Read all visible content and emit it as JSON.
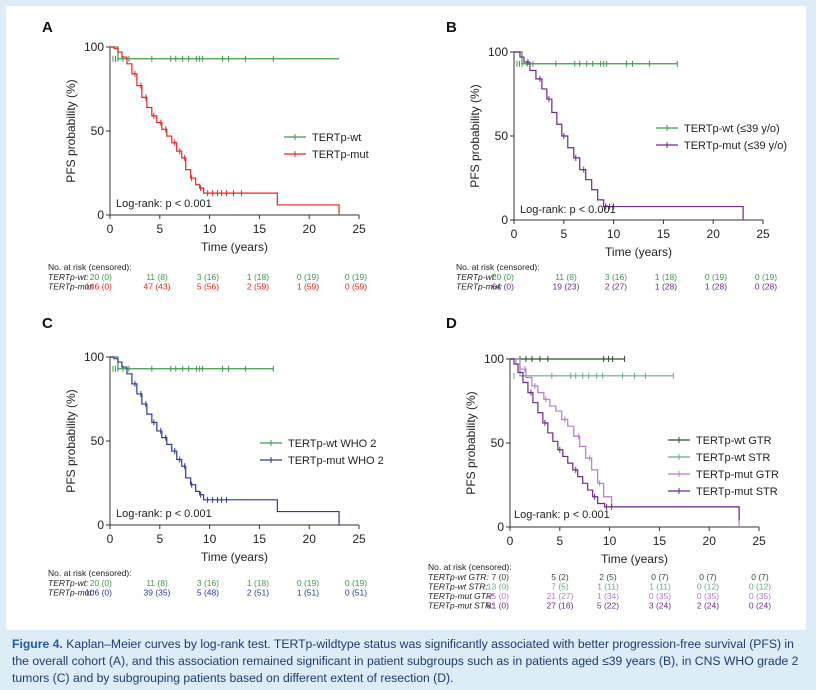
{
  "caption": {
    "label": "Figure 4.",
    "text": "Kaplan–Meier curves by log-rank test. TERTp-wildtype status was significantly associated with better progression-free survival (PFS) in the overall cohort (A), and this association remained significant in patient subgroups such as in patients aged ≤39 years (B), in CNS WHO grade 2 tumors (C) and by subgrouping patients based on different extent of resection (D)."
  },
  "chart_data": [
    {
      "type": "line",
      "panel": "A",
      "xlabel": "Time (years)",
      "ylabel": "PFS probability (%)",
      "xlim": [
        0,
        25
      ],
      "ylim": [
        0,
        100
      ],
      "xticks": [
        "0",
        "5",
        "10",
        "15",
        "20",
        "25"
      ],
      "yticks": [
        "0",
        "50",
        "100"
      ],
      "annotation": "Log-rank: p < 0.001",
      "series": [
        {
          "name": "TERTp-wt",
          "color": "#3f9a4f",
          "x": [
            0,
            0.4,
            0.8,
            23.0
          ],
          "y": [
            100,
            100,
            93,
            93
          ],
          "censor_x": [
            0.3,
            0.55,
            0.8,
            1.3,
            1.9,
            4.2,
            6.1,
            6.6,
            7.3,
            7.9,
            8.7,
            9.0,
            9.3,
            11.3,
            11.9,
            13.6,
            16.4
          ],
          "censor_y": 93
        },
        {
          "name": "TERTp-mut",
          "color": "#e8251f",
          "x": [
            0,
            0.4,
            0.8,
            1.2,
            1.7,
            2.2,
            2.7,
            3.2,
            3.7,
            4.2,
            4.7,
            5.2,
            5.7,
            6.2,
            6.7,
            7.2,
            7.6,
            8.1,
            8.6,
            9.0,
            9.4,
            10.2,
            16.8,
            23.0
          ],
          "y": [
            100,
            99,
            97,
            94,
            90,
            84,
            77,
            70,
            64,
            59,
            55,
            51,
            47,
            43,
            38,
            34,
            27,
            22,
            18,
            16,
            13,
            13,
            6,
            0
          ],
          "censor_x": [
            2.5,
            3.1,
            3.6,
            4.4,
            5.1,
            5.6,
            6.5,
            7.0,
            7.5,
            8.2,
            9.1,
            9.8,
            10.3,
            10.8,
            11.2,
            11.7,
            12.4,
            13.2
          ],
          "censor_y_mode": "curve"
        }
      ],
      "risk_table": {
        "title": "No. at risk (censored):",
        "rows": [
          {
            "label": "TERTp-wt:",
            "color": "#3f9a4f",
            "values": [
              "20 (0)",
              "11 (8)",
              "3 (16)",
              "1 (18)",
              "0 (19)",
              "0 (19)"
            ]
          },
          {
            "label": "TERTp-mut:",
            "color": "#e8251f",
            "values": [
              "146 (0)",
              "47 (43)",
              "5 (56)",
              "2 (59)",
              "1 (59)",
              "0 (59)"
            ]
          }
        ]
      }
    },
    {
      "type": "line",
      "panel": "B",
      "xlabel": "Time (years)",
      "ylabel": "PFS probability (%)",
      "xlim": [
        0,
        25
      ],
      "ylim": [
        0,
        100
      ],
      "xticks": [
        "0",
        "5",
        "10",
        "15",
        "20",
        "25"
      ],
      "yticks": [
        "0",
        "50",
        "100"
      ],
      "annotation": "Log-rank: p < 0.001",
      "series": [
        {
          "name": "TERTp-wt (≤39 y/o)",
          "color": "#3f9a4f",
          "x": [
            0,
            0.4,
            0.8,
            16.4
          ],
          "y": [
            100,
            100,
            93,
            93
          ],
          "censor_x": [
            0.3,
            0.55,
            0.8,
            1.3,
            1.9,
            4.2,
            6.1,
            6.6,
            7.3,
            7.9,
            8.7,
            9.0,
            9.3,
            11.3,
            11.9,
            13.6,
            16.4
          ],
          "censor_y": 93
        },
        {
          "name": "TERTp-mut (≤39 y/o)",
          "color": "#6a2b8a",
          "x": [
            0,
            0.6,
            1.0,
            1.6,
            2.2,
            2.8,
            3.3,
            3.8,
            4.3,
            4.8,
            5.4,
            6.0,
            6.6,
            7.2,
            7.8,
            8.4,
            9.0,
            9.8,
            23.0
          ],
          "y": [
            100,
            97,
            94,
            89,
            84,
            78,
            72,
            64,
            57,
            50,
            43,
            37,
            30,
            24,
            18,
            12,
            8,
            8,
            0
          ],
          "censor_x": [
            1.4,
            2.6,
            3.5,
            5.0,
            6.2,
            7.0,
            9.2,
            9.6,
            10.0
          ],
          "censor_y_mode": "curve"
        }
      ],
      "risk_table": {
        "title": "No. at risk (censored):",
        "rows": [
          {
            "label": "TERTp-wt:",
            "color": "#3f9a4f",
            "values": [
              "20 (0)",
              "11 (8)",
              "3 (16)",
              "1 (18)",
              "0 (19)",
              "0 (19)"
            ]
          },
          {
            "label": "TERTp-mut:",
            "color": "#6a2b8a",
            "values": [
              "64 (0)",
              "19 (23)",
              "2 (27)",
              "1 (28)",
              "1 (28)",
              "0 (28)"
            ]
          }
        ]
      }
    },
    {
      "type": "line",
      "panel": "C",
      "xlabel": "Time (years)",
      "ylabel": "PFS probability (%)",
      "xlim": [
        0,
        25
      ],
      "ylim": [
        0,
        100
      ],
      "xticks": [
        "0",
        "5",
        "10",
        "15",
        "20",
        "25"
      ],
      "yticks": [
        "0",
        "50",
        "100"
      ],
      "annotation": "Log-rank: p < 0.001",
      "series": [
        {
          "name": "TERTp-wt WHO 2",
          "color": "#3f9a4f",
          "x": [
            0,
            0.4,
            0.8,
            16.4
          ],
          "y": [
            100,
            100,
            93,
            93
          ],
          "censor_x": [
            0.3,
            0.55,
            0.8,
            1.3,
            1.9,
            4.2,
            6.1,
            6.6,
            7.3,
            7.9,
            8.7,
            9.0,
            9.3,
            11.3,
            11.9,
            13.6,
            16.4
          ],
          "censor_y": 93
        },
        {
          "name": "TERTp-mut WHO 2",
          "color": "#2e3a8f",
          "x": [
            0,
            0.4,
            0.8,
            1.2,
            1.7,
            2.2,
            2.7,
            3.2,
            3.7,
            4.2,
            4.7,
            5.2,
            5.7,
            6.2,
            6.7,
            7.2,
            7.6,
            8.1,
            8.6,
            9.0,
            9.4,
            10.2,
            16.8,
            23.0
          ],
          "y": [
            100,
            99,
            97,
            94,
            90,
            84,
            78,
            72,
            66,
            61,
            56,
            52,
            48,
            44,
            39,
            35,
            28,
            24,
            20,
            18,
            15,
            15,
            8,
            0
          ],
          "censor_x": [
            2.5,
            3.1,
            3.6,
            4.4,
            5.1,
            5.6,
            6.5,
            7.0,
            7.5,
            8.2,
            9.1,
            9.8,
            10.3,
            10.8,
            11.2,
            11.7
          ],
          "censor_y_mode": "curve"
        }
      ],
      "risk_table": {
        "title": "No. at risk (censored):",
        "rows": [
          {
            "label": "TERTp-wt:",
            "color": "#3f9a4f",
            "values": [
              "20 (0)",
              "11 (8)",
              "3 (16)",
              "1 (18)",
              "0 (19)",
              "0 (19)"
            ]
          },
          {
            "label": "TERTp-mut:",
            "color": "#2e3a8f",
            "values": [
              "106 (0)",
              "39 (35)",
              "5 (48)",
              "2 (51)",
              "1 (51)",
              "0 (51)"
            ]
          }
        ]
      }
    },
    {
      "type": "line",
      "panel": "D",
      "xlabel": "Time (years)",
      "ylabel": "PFS probability (%)",
      "xlim": [
        0,
        25
      ],
      "ylim": [
        0,
        100
      ],
      "xticks": [
        "0",
        "5",
        "10",
        "15",
        "20",
        "25"
      ],
      "yticks": [
        "0",
        "50",
        "100"
      ],
      "annotation": "Log-rank: p < 0.001",
      "series": [
        {
          "name": "TERTp-wt GTR",
          "color": "#2f4f2f",
          "x": [
            0,
            11.5
          ],
          "y": [
            100,
            100
          ],
          "censor_x": [
            1.0,
            1.6,
            2.2,
            3.0,
            3.8,
            9.4,
            9.9,
            10.3,
            11.5
          ],
          "censor_y": 100
        },
        {
          "name": "TERTp-wt STR",
          "color": "#66aa88",
          "x": [
            0,
            0.6,
            1.0,
            16.4
          ],
          "y": [
            100,
            100,
            90,
            90
          ],
          "censor_x": [
            0.4,
            1.3,
            4.2,
            6.1,
            6.6,
            7.3,
            7.9,
            8.7,
            9.3,
            11.3,
            12.5,
            13.6,
            16.4
          ],
          "censor_y": 90
        },
        {
          "name": "TERTp-mut GTR",
          "color": "#b57bd0",
          "x": [
            0,
            0.6,
            1.0,
            1.6,
            2.2,
            2.8,
            3.4,
            4.0,
            4.6,
            5.2,
            5.8,
            6.4,
            7.0,
            7.6,
            8.2,
            8.8,
            9.4,
            10.2,
            23.0
          ],
          "y": [
            100,
            97,
            94,
            89,
            84,
            80,
            76,
            72,
            69,
            64,
            60,
            54,
            48,
            41,
            34,
            26,
            18,
            12,
            0
          ],
          "censor_x": [
            1.5,
            2.5,
            3.6,
            5.5,
            6.9,
            8.0,
            9.0
          ],
          "censor_y_mode": "curve"
        },
        {
          "name": "TERTp-mut STR",
          "color": "#6a2b8a",
          "x": [
            0,
            0.4,
            0.8,
            1.3,
            1.8,
            2.3,
            2.8,
            3.3,
            3.8,
            4.3,
            4.8,
            5.3,
            5.8,
            6.3,
            6.8,
            7.3,
            7.8,
            8.3,
            8.8,
            9.5,
            23.0
          ],
          "y": [
            100,
            97,
            92,
            86,
            80,
            74,
            68,
            62,
            56,
            51,
            46,
            42,
            38,
            34,
            30,
            26,
            22,
            18,
            14,
            12,
            4
          ],
          "censor_x": [
            2.1,
            3.5,
            5.0,
            6.6,
            8.5,
            9.7,
            10.2
          ],
          "censor_y_mode": "curve"
        }
      ],
      "risk_table": {
        "title": "No. at risk (censored):",
        "rows": [
          {
            "label": "TERTp-wt GTR:",
            "color": "#2f4f2f",
            "values": [
              "7 (0)",
              "5 (2)",
              "2 (5)",
              "0 (7)",
              "0 (7)",
              "0 (7)"
            ]
          },
          {
            "label": "TERTp-wt STR:",
            "color": "#66aa88",
            "values": [
              "13 (0)",
              "7 (5)",
              "1 (11)",
              "1 (11)",
              "0 (12)",
              "0 (12)"
            ]
          },
          {
            "label": "TERTp-mut GTR:",
            "color": "#b57bd0",
            "values": [
              "65 (0)",
              "21 (27)",
              "1 (34)",
              "0 (35)",
              "0 (35)",
              "0 (35)"
            ]
          },
          {
            "label": "TERTp-mut STR:",
            "color": "#6a2b8a",
            "values": [
              "81 (0)",
              "27 (16)",
              "5 (22)",
              "3 (24)",
              "2 (24)",
              "0 (24)"
            ]
          }
        ]
      }
    }
  ]
}
